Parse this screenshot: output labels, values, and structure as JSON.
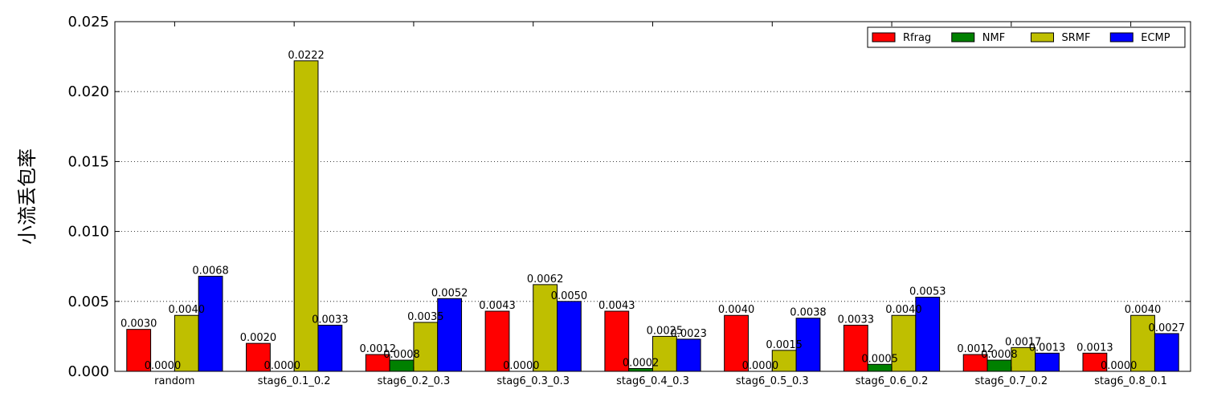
{
  "chart_data": {
    "type": "bar",
    "ylabel": "小流丢包率",
    "xlabel": "",
    "title": "",
    "ylim": [
      0,
      0.025
    ],
    "yticks": [
      "0.000",
      "0.005",
      "0.010",
      "0.015",
      "0.020",
      "0.025"
    ],
    "ytick_values": [
      0,
      0.005,
      0.01,
      0.015,
      0.02,
      0.025
    ],
    "grid": "y-dotted",
    "legend_position": "top-right",
    "categories": [
      "random",
      "stag6_0.1_0.2",
      "stag6_0.2_0.3",
      "stag6_0.3_0.3",
      "stag6_0.4_0.3",
      "stag6_0.5_0.3",
      "stag6_0.6_0.2",
      "stag6_0.7_0.2",
      "stag6_0.8_0.1"
    ],
    "series": [
      {
        "name": "Rfrag",
        "color": "#ff0000",
        "values": [
          0.003,
          0.002,
          0.0012,
          0.0043,
          0.0043,
          0.004,
          0.0033,
          0.0012,
          0.0013
        ],
        "labels": [
          "0.0030",
          "0.0020",
          "0.0012",
          "0.0043",
          "0.0043",
          "0.0040",
          "0.0033",
          "0.0012",
          "0.0013"
        ]
      },
      {
        "name": "NMF",
        "color": "#008000",
        "values": [
          0.0,
          0.0,
          0.0008,
          0.0,
          0.0002,
          0.0,
          0.0005,
          0.0008,
          0.0
        ],
        "labels": [
          "0.0000",
          "0.0000",
          "0.0008",
          "0.0000",
          "0.0002",
          "0.0000",
          "0.0005",
          "0.0008",
          "0.0000"
        ]
      },
      {
        "name": "SRMF",
        "color": "#bfbf00",
        "values": [
          0.004,
          0.0222,
          0.0035,
          0.0062,
          0.0025,
          0.0015,
          0.004,
          0.0017,
          0.004
        ],
        "labels": [
          "0.0040",
          "0.0222",
          "0.0035",
          "0.0062",
          "0.0025",
          "0.0015",
          "0.0040",
          "0.0017",
          "0.0040"
        ]
      },
      {
        "name": "ECMP",
        "color": "#0000ff",
        "values": [
          0.0068,
          0.0033,
          0.0052,
          0.005,
          0.0023,
          0.0038,
          0.0053,
          0.0013,
          0.0027
        ],
        "labels": [
          "0.0068",
          "0.0033",
          "0.0052",
          "0.0050",
          "0.0023",
          "0.0038",
          "0.0053",
          "0.0013",
          "0.0027"
        ]
      }
    ]
  }
}
